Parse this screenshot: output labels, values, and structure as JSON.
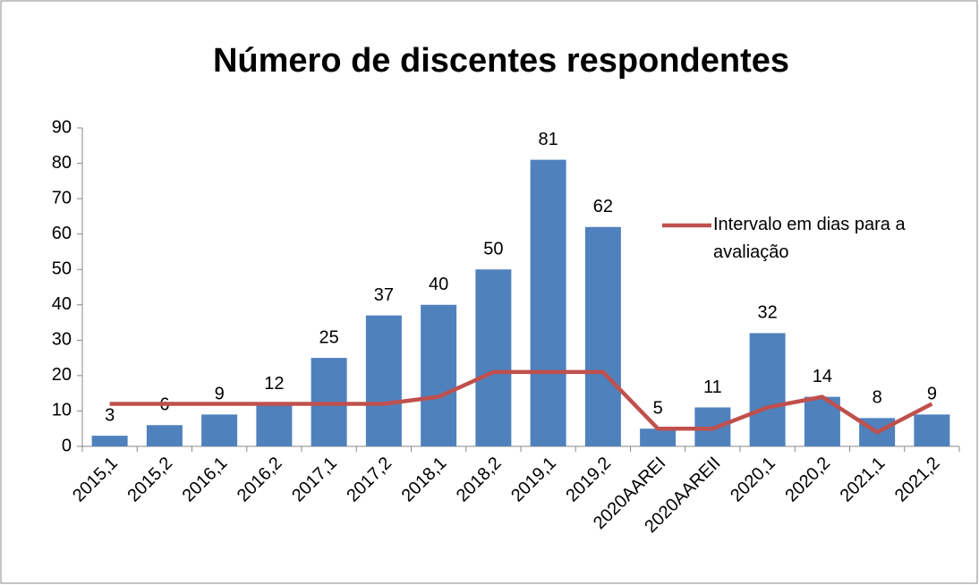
{
  "chart_data": {
    "type": "bar",
    "title": "Número de discentes respondentes",
    "categories": [
      "2015,1",
      "2015,2",
      "2016,1",
      "2016,2",
      "2017,1",
      "2017,2",
      "2018,1",
      "2018,2",
      "2019,1",
      "2019,2",
      "2020AAREI",
      "2020AAREII",
      "2020,1",
      "2020,2",
      "2021,1",
      "2021,2"
    ],
    "series": [
      {
        "type": "bar",
        "color": "#4f81bd",
        "values": [
          3,
          6,
          9,
          12,
          25,
          37,
          40,
          50,
          81,
          62,
          5,
          11,
          32,
          14,
          8,
          9
        ]
      },
      {
        "type": "line",
        "name": "Intervalo em dias para a avaliação",
        "color": "#c0504d",
        "values": [
          12,
          12,
          12,
          12,
          12,
          12,
          14,
          21,
          21,
          21,
          5,
          5,
          11,
          14,
          4,
          12
        ]
      }
    ],
    "ylim": [
      0,
      90
    ],
    "yticks": [
      0,
      10,
      20,
      30,
      40,
      50,
      60,
      70,
      80,
      90
    ],
    "legend": "right"
  }
}
